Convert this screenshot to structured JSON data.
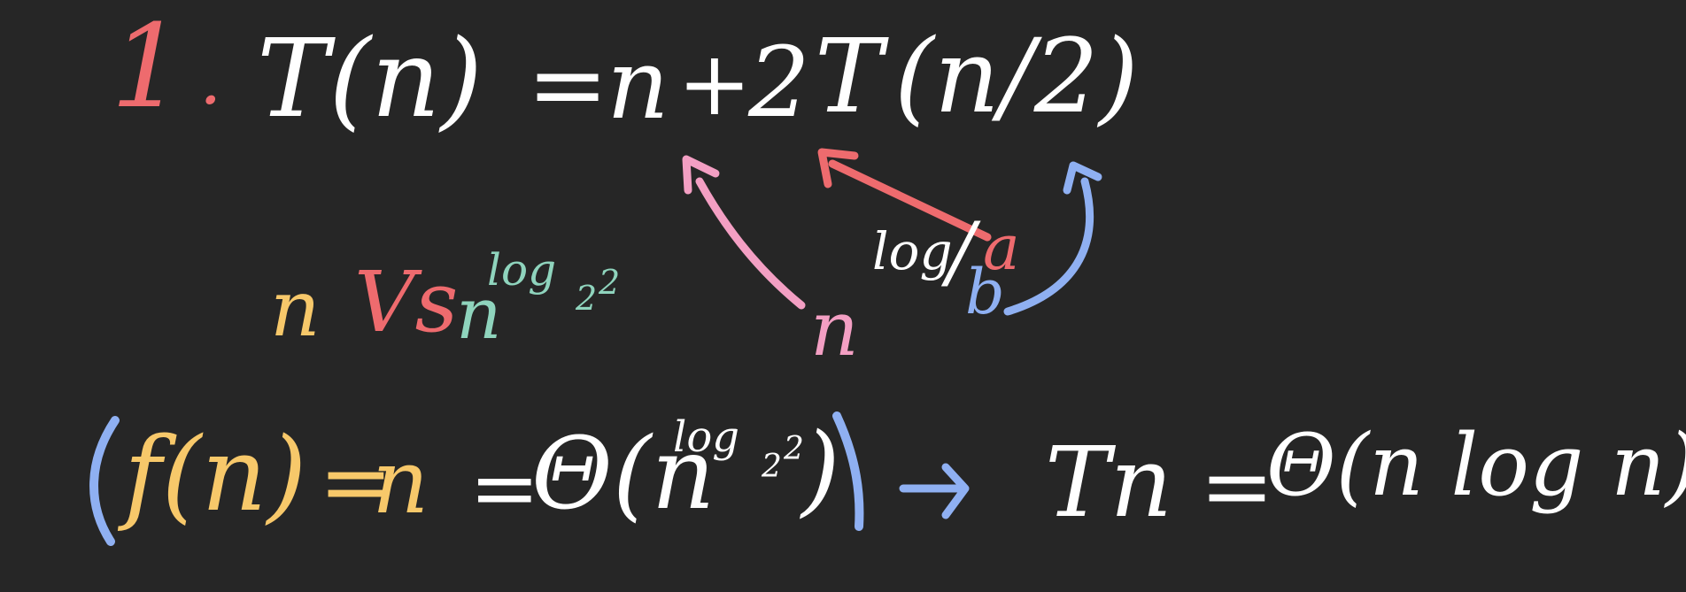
{
  "colors": {
    "background": "#262626",
    "white": "#ffffff",
    "red": "#ee6b6e",
    "pink": "#f39fc3",
    "blue": "#8fb0f2",
    "yellow": "#f7c86a",
    "teal": "#8fd4bd"
  },
  "line1": {
    "number": "1",
    "dot": ".",
    "recurrence_lhs": "T(n)",
    "equals": "=",
    "term_n": "n",
    "plus": "+",
    "term_a": "2",
    "term_T": "T",
    "term_arg": "(n/2)"
  },
  "annotation": {
    "base_n": "n",
    "log_label": "log",
    "slash": "/",
    "a_label": "a",
    "b_label": "b"
  },
  "comparison": {
    "left": "n",
    "vs": "Vs",
    "right_base": "n",
    "right_exp": "log",
    "right_exp_sub": "2",
    "right_exp_sup": "2"
  },
  "line3": {
    "open_bracket": "(",
    "f_of_n": "f(n)",
    "eq1": "=",
    "n_value": "n",
    "eq2": "=",
    "theta1": "Θ(n",
    "theta1_exp": "log",
    "theta1_exp_sub": "2",
    "theta1_exp_sup": "2",
    "theta1_close": ")",
    "close_bracket": ")",
    "arrow": "→",
    "result_lhs": "Tn",
    "eq3": "=",
    "result_rhs": "Θ(n log n)"
  }
}
